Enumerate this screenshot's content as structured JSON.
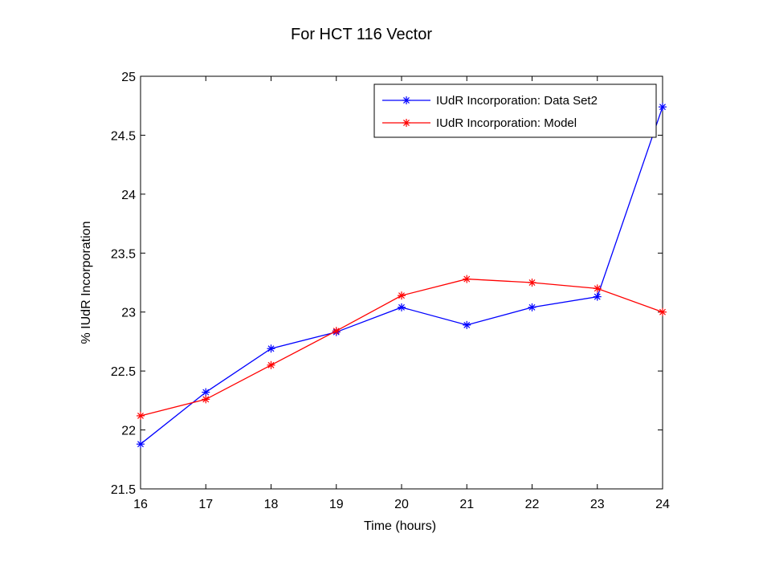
{
  "slide": {
    "title": "For HCT 116 Vector"
  },
  "chart_data": {
    "type": "line",
    "title": "",
    "xlabel": "Time (hours)",
    "ylabel": "% IUdR Incorporation",
    "xlim": [
      16,
      24
    ],
    "ylim": [
      21.5,
      25
    ],
    "xticks": [
      "16",
      "17",
      "18",
      "19",
      "20",
      "21",
      "22",
      "23",
      "24"
    ],
    "yticks": [
      "21.5",
      "22",
      "22.5",
      "23",
      "23.5",
      "24",
      "24.5",
      "25"
    ],
    "grid": false,
    "legend_position": "top-right",
    "marker": "asterisk",
    "x": [
      16,
      17,
      18,
      19,
      20,
      21,
      22,
      23,
      24
    ],
    "series": [
      {
        "name": "IUdR Incorporation: Data Set2",
        "color": "#0000ff",
        "values": [
          21.88,
          22.32,
          22.69,
          22.83,
          23.04,
          22.89,
          23.04,
          23.13,
          24.74
        ]
      },
      {
        "name": "IUdR Incorporation: Model",
        "color": "#ff0000",
        "values": [
          22.12,
          22.26,
          22.55,
          22.84,
          23.14,
          23.28,
          23.25,
          23.2,
          23.0
        ]
      }
    ]
  }
}
